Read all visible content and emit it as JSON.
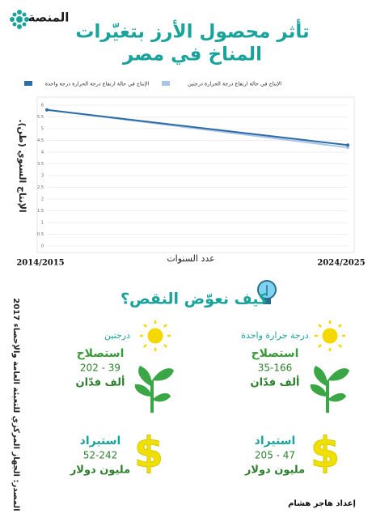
{
  "header": {
    "logo": "المنصة",
    "title": [
      "تأثر محصول الأرز بتغيّرات",
      "المناخ في مصر"
    ]
  },
  "chart_data": {
    "type": "line",
    "categories": [
      "2014/2015",
      "2024/2025"
    ],
    "series": [
      {
        "name": "الإنتاج في حالة ارتفاع درجة الحرارة درجة واحدة",
        "color": "#2e6da4",
        "values": [
          5.8,
          4.3
        ]
      },
      {
        "name": "الإنتاج في حالة ارتفاع درجة الحرارة درجتين",
        "color": "#a9c4e8",
        "values": [
          5.8,
          4.2
        ]
      }
    ],
    "ylim": [
      0,
      6
    ],
    "yticks": [
      0,
      0.5,
      1,
      1.5,
      2,
      2.5,
      3,
      3.5,
      4,
      4.5,
      5,
      5.5,
      6
    ],
    "y_label": "الإنتاج السنوي (طن).",
    "x_label": "عدد السنوات",
    "grid": true,
    "legend_position": "top"
  },
  "section": {
    "title": "كيف نعوّض النقص؟",
    "columns": [
      {
        "heading": "درجة حرارة واحدة",
        "items": [
          {
            "label": "استصلاح",
            "range": "35-166",
            "unit": "ألف فدّان"
          },
          {
            "label": "استيراد",
            "range": "205 - 47",
            "unit": "مليون دولار"
          }
        ]
      },
      {
        "heading": "درجتين",
        "items": [
          {
            "label": "استصلاح",
            "range": "202 - 39",
            "unit": "ألف فدّان"
          },
          {
            "label": "استيراد",
            "range": "52-242",
            "unit": "مليون دولار"
          }
        ]
      }
    ]
  },
  "source": "المصدر: الجهاز المركزي للتعبئة العامة والإحصاء 2017",
  "credit": "إعداد هاجر هشام"
}
